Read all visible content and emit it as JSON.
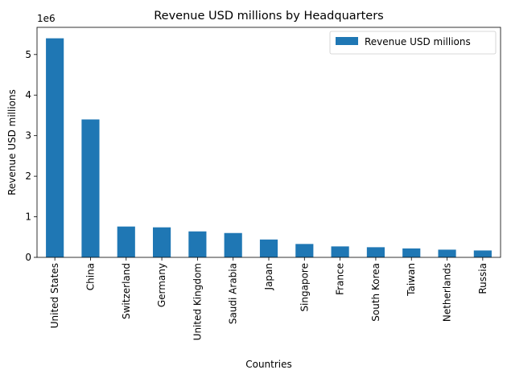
{
  "chart_data": {
    "type": "bar",
    "title": "Revenue USD millions by Headquarters",
    "xlabel": "Countries",
    "ylabel": "Revenue USD millions",
    "y_offset_text": "1e6",
    "y_scale": 1000000,
    "ylim": [
      0,
      5.67
    ],
    "yticks": [
      0,
      1,
      2,
      3,
      4,
      5
    ],
    "grid": false,
    "legend": {
      "placement": "top-right",
      "entries": [
        "Revenue USD millions"
      ]
    },
    "categories": [
      "United States",
      "China",
      "Switzerland",
      "Germany",
      "United Kingdom",
      "Saudi Arabia",
      "Japan",
      "Singapore",
      "France",
      "South Korea",
      "Taiwan",
      "Netherlands",
      "Russia"
    ],
    "series": [
      {
        "name": "Revenue USD millions",
        "color": "#1f77b4",
        "values": [
          5.4,
          3.4,
          0.76,
          0.74,
          0.64,
          0.6,
          0.44,
          0.33,
          0.27,
          0.25,
          0.22,
          0.19,
          0.17
        ]
      }
    ]
  }
}
